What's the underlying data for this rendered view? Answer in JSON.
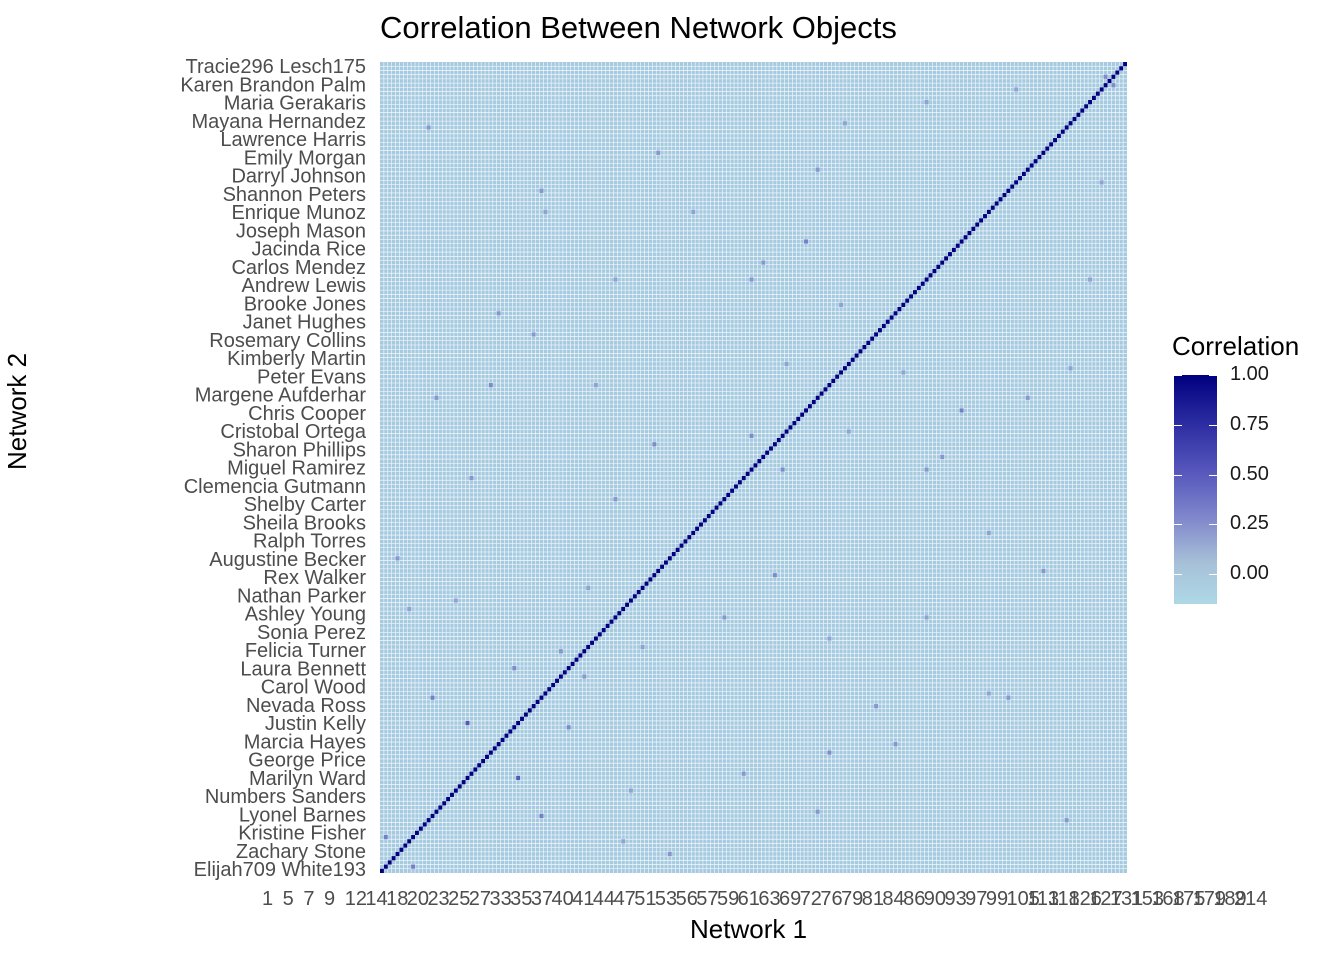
{
  "chart_data": {
    "type": "heatmap",
    "title": "Correlation Between Network Objects",
    "xlabel": "Network 1",
    "ylabel": "Network 2",
    "legend": {
      "title": "Correlation",
      "placement": "right",
      "ticks": [
        1.0,
        0.75,
        0.5,
        0.25,
        0.0
      ],
      "tick_labels": [
        "1.00",
        "0.75",
        "0.50",
        "0.25",
        "0.00"
      ],
      "range": [
        -0.15,
        1.0
      ],
      "low_color": "#ADD8E6",
      "high_color": "#00008B"
    },
    "grid": false,
    "matrix_size": 192,
    "diagonal_value": 1.0,
    "background_value": 0.0,
    "x_tick_labels": [
      "1",
      "5",
      "7",
      "9",
      "12",
      "14",
      "18",
      "20",
      "23",
      "25",
      "27",
      "33",
      "35",
      "37",
      "40",
      "41",
      "44",
      "47",
      "51",
      "53",
      "56",
      "57",
      "59",
      "61",
      "63",
      "69",
      "72",
      "76",
      "79",
      "81",
      "84",
      "86",
      "90",
      "93",
      "97",
      "99",
      "105",
      "113",
      "118",
      "126",
      "127",
      "131",
      "153",
      "168",
      "175",
      "179",
      "189",
      "214"
    ],
    "y_tick_labels": [
      "Tracie296 Lesch175",
      "Karen Brandon Palm",
      "Maria Gerakaris",
      "Mayana Hernandez",
      "Lawrence Harris",
      "Emily Morgan",
      "Darryl Johnson",
      "Shannon Peters",
      "Enrique Munoz",
      "Joseph Mason",
      "Jacinda Rice",
      "Carlos Mendez",
      "Andrew Lewis",
      "Brooke Jones",
      "Janet Hughes",
      "Rosemary Collins",
      "Kimberly Martin",
      "Peter Evans",
      "Margene Aufderhar",
      "Chris Cooper",
      "Cristobal Ortega",
      "Sharon Phillips",
      "Miguel Ramirez",
      "Clemencia Gutmann",
      "Shelby Carter",
      "Sheila Brooks",
      "Ralph Torres",
      "Augustine Becker",
      "Rex Walker",
      "Nathan Parker",
      "Ashley Young",
      "Sonia Perez",
      "Felicia Turner",
      "Laura Bennett",
      "Carol Wood",
      "Nevada Ross",
      "Justin Kelly",
      "Marcia Hayes",
      "George Price",
      "Marilyn Ward",
      "Numbers Sanders",
      "Lyonel Barnes",
      "Kristine Fisher",
      "Zachary Stone",
      "Elijah709 White193"
    ],
    "off_diagonal_highlights": [
      {
        "row": 1,
        "col": 8,
        "value": 0.55
      },
      {
        "row": 7,
        "col": 62,
        "value": 0.4
      },
      {
        "row": 13,
        "col": 41,
        "value": 0.55
      },
      {
        "row": 14,
        "col": 112,
        "value": 0.45
      },
      {
        "row": 19,
        "col": 64,
        "value": 0.4
      },
      {
        "row": 22,
        "col": 35,
        "value": 0.7
      },
      {
        "row": 23,
        "col": 93,
        "value": 0.45
      },
      {
        "row": 30,
        "col": 132,
        "value": 0.45
      },
      {
        "row": 34,
        "col": 48,
        "value": 0.5
      },
      {
        "row": 41,
        "col": 161,
        "value": 0.45
      },
      {
        "row": 46,
        "col": 52,
        "value": 0.45
      },
      {
        "row": 53,
        "col": 67,
        "value": 0.4
      },
      {
        "row": 55,
        "col": 115,
        "value": 0.4
      },
      {
        "row": 60,
        "col": 140,
        "value": 0.4
      },
      {
        "row": 70,
        "col": 101,
        "value": 0.5
      },
      {
        "row": 74,
        "col": 4,
        "value": 0.45
      },
      {
        "row": 80,
        "col": 156,
        "value": 0.4
      },
      {
        "row": 88,
        "col": 60,
        "value": 0.45
      },
      {
        "row": 95,
        "col": 103,
        "value": 0.5
      },
      {
        "row": 98,
        "col": 144,
        "value": 0.45
      },
      {
        "row": 104,
        "col": 120,
        "value": 0.4
      },
      {
        "row": 112,
        "col": 166,
        "value": 0.45
      },
      {
        "row": 115,
        "col": 28,
        "value": 0.5
      },
      {
        "row": 119,
        "col": 177,
        "value": 0.4
      },
      {
        "row": 127,
        "col": 39,
        "value": 0.45
      },
      {
        "row": 134,
        "col": 118,
        "value": 0.4
      },
      {
        "row": 140,
        "col": 95,
        "value": 0.45
      },
      {
        "row": 149,
        "col": 109,
        "value": 0.55
      },
      {
        "row": 156,
        "col": 42,
        "value": 0.4
      },
      {
        "row": 163,
        "col": 185,
        "value": 0.4
      },
      {
        "row": 170,
        "col": 71,
        "value": 0.45
      },
      {
        "row": 176,
        "col": 12,
        "value": 0.45
      },
      {
        "row": 182,
        "col": 140,
        "value": 0.4
      },
      {
        "row": 188,
        "col": 186,
        "value": 0.5
      }
    ]
  }
}
